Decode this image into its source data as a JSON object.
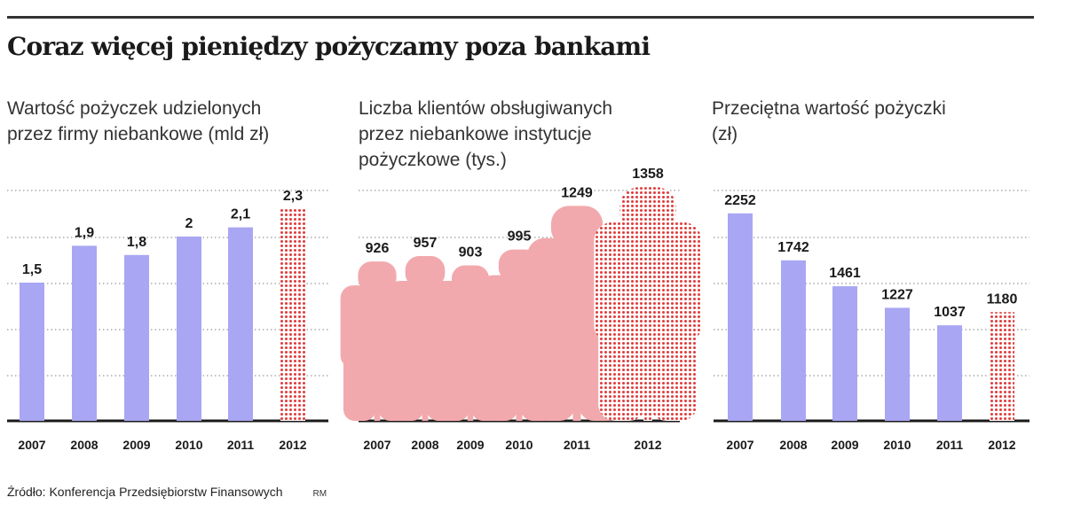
{
  "header": {
    "title": "Coraz więcej pieniędzy pożyczamy poza bankami"
  },
  "footer": {
    "source": "Źródło: Konferencja Przedsiębiorstw Finansowych",
    "credit": "RM"
  },
  "colors": {
    "bar": "#a9a6f3",
    "figure": "#f2a9ad",
    "forecast": "#e03c3c",
    "grid": "#9a9a9a",
    "axis": "#1a1a1a"
  },
  "chart_data": [
    {
      "type": "bar",
      "subtitle_lines": [
        "Wartość pożyczek udzielonych",
        "przez firmy niebankowe (mld zł)"
      ],
      "categories": [
        "2007",
        "2008",
        "2009",
        "2010",
        "2011",
        "2012"
      ],
      "values": [
        1.5,
        1.9,
        1.8,
        2,
        2.1,
        2.3
      ],
      "value_labels": [
        "1,5",
        "1,9",
        "1,8",
        "2",
        "2,1",
        "2,3"
      ],
      "highlight_last": true,
      "ylim": [
        0,
        2.5
      ],
      "grid": true
    },
    {
      "type": "bar",
      "subtitle_lines": [
        "Liczba klientów obsługiwanych",
        "przez niebankowe instytucje",
        "pożyczkowe (tys.)"
      ],
      "categories": [
        "2007",
        "2008",
        "2009",
        "2010",
        "2011",
        "2012"
      ],
      "values": [
        926,
        957,
        903,
        995,
        1249,
        1358
      ],
      "value_labels": [
        "926",
        "957",
        "903",
        "995",
        "1249",
        "1358"
      ],
      "highlight_last": true,
      "grid": true
    },
    {
      "type": "bar",
      "subtitle_lines": [
        "Przeciętna wartość pożyczki",
        "(zł)"
      ],
      "categories": [
        "2007",
        "2008",
        "2009",
        "2010",
        "2011",
        "2012"
      ],
      "values": [
        2252,
        1742,
        1461,
        1227,
        1037,
        1180
      ],
      "value_labels": [
        "2252",
        "1742",
        "1461",
        "1227",
        "1037",
        "1180"
      ],
      "highlight_last": true,
      "ylim": [
        0,
        2500
      ],
      "grid": true
    }
  ]
}
